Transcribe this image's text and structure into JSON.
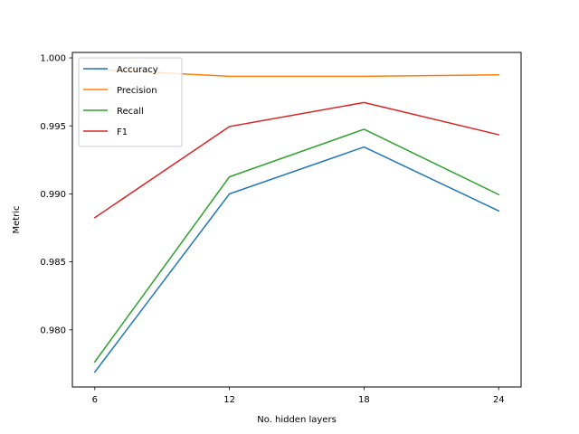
{
  "chart_data": {
    "type": "line",
    "title": "",
    "xlabel": "No. hidden layers",
    "ylabel": "Metric",
    "x": [
      6,
      12,
      18,
      24
    ],
    "xticks": [
      6,
      12,
      18,
      24
    ],
    "xtick_labels": [
      "6",
      "12",
      "18",
      "24"
    ],
    "yticks": [
      0.98,
      0.985,
      0.99,
      0.995,
      1.0
    ],
    "ytick_labels": [
      "0.980",
      "0.985",
      "0.990",
      "0.995",
      "1.000"
    ],
    "xlim": [
      5.0,
      25.0
    ],
    "ylim": [
      0.9758,
      1.0004
    ],
    "grid": false,
    "legend_position": "upper-left",
    "series": [
      {
        "name": "Accuracy",
        "color": "#1f77b4",
        "values": [
          0.9769,
          0.99,
          0.99345,
          0.98875
        ]
      },
      {
        "name": "Precision",
        "color": "#ff7f0e",
        "values": [
          0.99915,
          0.99865,
          0.99865,
          0.99875
        ]
      },
      {
        "name": "Recall",
        "color": "#2ca02c",
        "values": [
          0.97765,
          0.99125,
          0.99475,
          0.98995
        ]
      },
      {
        "name": "F1",
        "color": "#d62728",
        "values": [
          0.98825,
          0.99495,
          0.99672,
          0.99435
        ]
      }
    ]
  }
}
